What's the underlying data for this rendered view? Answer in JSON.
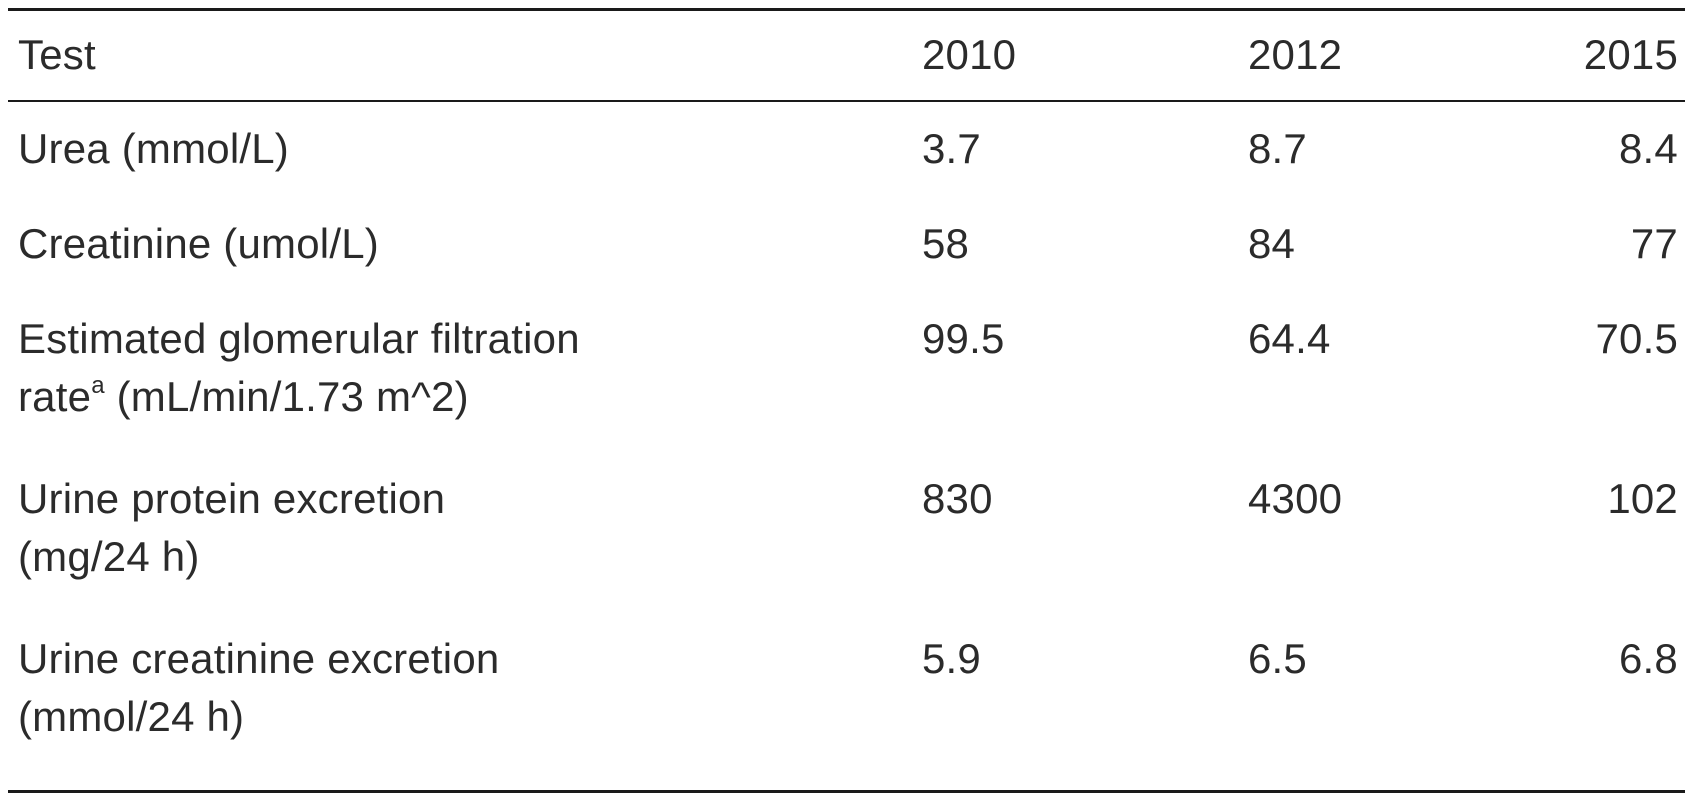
{
  "table": {
    "headers": [
      "Test",
      "2010",
      "2012",
      "2015"
    ],
    "rows": [
      {
        "test_line1": "Urea (mmol/L)",
        "values": [
          "3.7",
          "8.7",
          "8.4"
        ]
      },
      {
        "test_line1": "Creatinine (umol/L)",
        "values": [
          "58",
          "84",
          "77"
        ]
      },
      {
        "test_line1": "Estimated glomerular filtration",
        "test_line2_pre": "rate",
        "test_line2_sup": "a",
        "test_line2_post": " (mL/min/1.73 m^2)",
        "values": [
          "99.5",
          "64.4",
          "70.5"
        ]
      },
      {
        "test_line1": "Urine protein excretion",
        "test_line2": "(mg/24 h)",
        "values": [
          "830",
          "4300",
          "102"
        ]
      },
      {
        "test_line1": "Urine creatinine excretion",
        "test_line2": "(mmol/24 h)",
        "values": [
          "5.9",
          "6.5",
          "6.8"
        ]
      }
    ]
  }
}
